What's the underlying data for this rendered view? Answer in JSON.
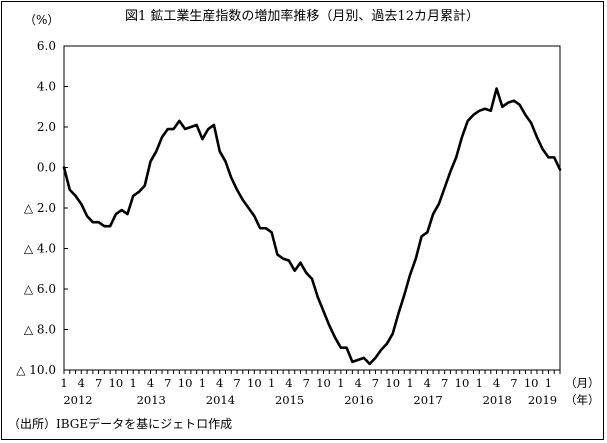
{
  "chart_data": {
    "type": "line",
    "title": "図1 鉱工業生産指数の増加率推移（月別、過去12カ月累計）",
    "ylabel": "（%）",
    "x_unit_month": "（月）",
    "x_unit_year": "（年）",
    "source": "（出所）IBGEデータを基にジェトロ作成",
    "ylim": [
      -10,
      6
    ],
    "yticks": [
      {
        "value": 6,
        "label": "6.0"
      },
      {
        "value": 4,
        "label": "4.0"
      },
      {
        "value": 2,
        "label": "2.0"
      },
      {
        "value": 0,
        "label": "0.0"
      },
      {
        "value": -2,
        "label": "△ 2.0"
      },
      {
        "value": -4,
        "label": "△ 4.0"
      },
      {
        "value": -6,
        "label": "△ 6.0"
      },
      {
        "value": -8,
        "label": "△ 8.0"
      },
      {
        "value": -10,
        "label": "△ 10.0"
      }
    ],
    "month_tick_labels": [
      "1",
      "4",
      "7",
      "10",
      "1",
      "4",
      "7",
      "10",
      "1",
      "4",
      "7",
      "10",
      "1",
      "4",
      "7",
      "10",
      "1",
      "4",
      "7",
      "10",
      "1",
      "4",
      "7",
      "10",
      "1",
      "4",
      "7",
      "10",
      "1"
    ],
    "year_labels": [
      {
        "label": "2012",
        "month_index": 0
      },
      {
        "label": "2013",
        "month_index": 12
      },
      {
        "label": "2014",
        "month_index": 24
      },
      {
        "label": "2015",
        "month_index": 36
      },
      {
        "label": "2016",
        "month_index": 48
      },
      {
        "label": "2017",
        "month_index": 60
      },
      {
        "label": "2018",
        "month_index": 72
      },
      {
        "label": "2019",
        "month_index": 84
      }
    ],
    "x_start": "2012-01",
    "series": [
      {
        "color": "#000000",
        "values": [
          0.0,
          -1.1,
          -1.4,
          -1.8,
          -2.4,
          -2.7,
          -2.7,
          -2.9,
          -2.9,
          -2.3,
          -2.1,
          -2.3,
          -1.4,
          -1.2,
          -0.9,
          0.3,
          0.8,
          1.5,
          1.9,
          1.9,
          2.3,
          1.9,
          2.0,
          2.1,
          1.4,
          1.9,
          2.1,
          0.8,
          0.3,
          -0.5,
          -1.1,
          -1.6,
          -2.0,
          -2.4,
          -3.0,
          -3.0,
          -3.2,
          -4.3,
          -4.5,
          -4.6,
          -5.1,
          -4.7,
          -5.2,
          -5.5,
          -6.4,
          -7.1,
          -7.8,
          -8.4,
          -8.9,
          -8.9,
          -9.6,
          -9.5,
          -9.4,
          -9.7,
          -9.4,
          -9.0,
          -8.7,
          -8.2,
          -7.2,
          -6.3,
          -5.3,
          -4.5,
          -3.4,
          -3.2,
          -2.3,
          -1.8,
          -1.0,
          -0.2,
          0.5,
          1.5,
          2.3,
          2.6,
          2.8,
          2.9,
          2.8,
          3.9,
          3.0,
          3.2,
          3.3,
          3.1,
          2.6,
          2.2,
          1.5,
          0.9,
          0.5,
          0.5,
          -0.1
        ]
      }
    ]
  }
}
